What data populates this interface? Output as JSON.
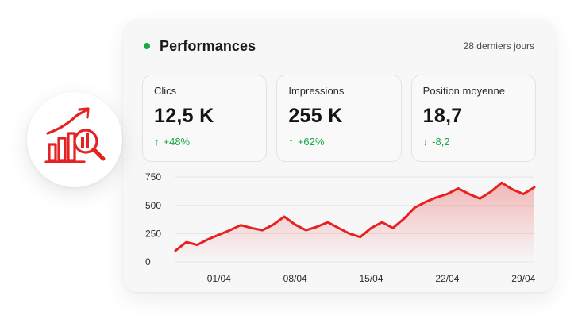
{
  "card": {
    "title": "Performances",
    "period": "28 derniers jours",
    "status_color": "#1aa84a"
  },
  "metrics": [
    {
      "label": "Clics",
      "value": "12,5 K",
      "change": "+48%",
      "direction": "up"
    },
    {
      "label": "Impressions",
      "value": "255 K",
      "change": "+62%",
      "direction": "up"
    },
    {
      "label": "Position moyenne",
      "value": "18,7",
      "change": "-8,2",
      "direction": "down"
    }
  ],
  "badge": {
    "icon": "analytics-growth-search-icon",
    "color": "#e52222"
  },
  "colors": {
    "accent": "#e52222",
    "positive": "#1aa84a"
  },
  "chart_data": {
    "type": "area",
    "x_tick_labels": [
      "01/04",
      "08/04",
      "15/04",
      "22/04",
      "29/04"
    ],
    "y_tick_labels": [
      "0",
      "250",
      "500",
      "750"
    ],
    "ylim": [
      0,
      800
    ],
    "grid": true,
    "series": [
      {
        "color": "#e52222",
        "x": [
          "28/03",
          "29/03",
          "30/03",
          "31/03",
          "01/04",
          "02/04",
          "03/04",
          "04/04",
          "05/04",
          "06/04",
          "07/04",
          "08/04",
          "09/04",
          "10/04",
          "11/04",
          "12/04",
          "13/04",
          "14/04",
          "15/04",
          "16/04",
          "17/04",
          "18/04",
          "19/04",
          "20/04",
          "21/04",
          "22/04",
          "23/04",
          "24/04",
          "25/04",
          "26/04",
          "27/04",
          "28/04",
          "29/04",
          "30/04"
        ],
        "values": [
          100,
          175,
          150,
          200,
          240,
          280,
          325,
          300,
          280,
          330,
          400,
          330,
          280,
          310,
          350,
          300,
          250,
          220,
          300,
          350,
          300,
          380,
          480,
          530,
          570,
          600,
          650,
          600,
          560,
          620,
          700,
          640,
          600,
          660
        ]
      }
    ]
  }
}
